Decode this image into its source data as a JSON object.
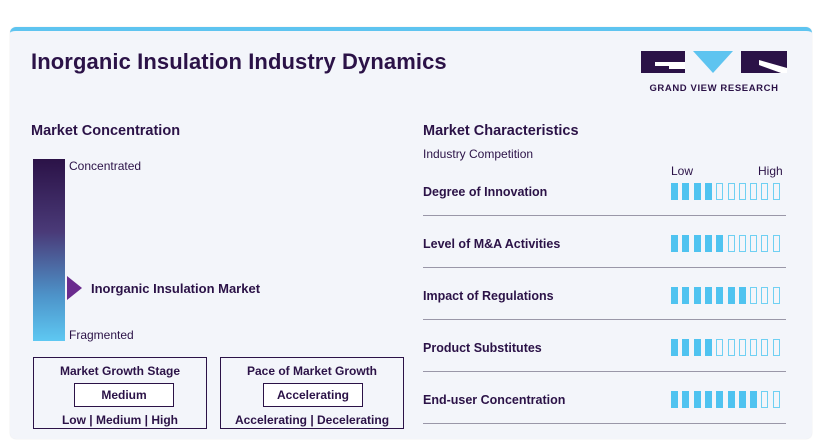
{
  "title": "Inorganic Insulation Industry Dynamics",
  "logo": {
    "text": "GRAND VIEW RESEARCH",
    "colors": {
      "dark": "#2b1247",
      "accent": "#5ec4f0"
    }
  },
  "market_concentration": {
    "heading": "Market Concentration",
    "top_label": "Concentrated",
    "bottom_label": "Fragmented",
    "marker_label": "Inorganic Insulation Market"
  },
  "growth_stage": {
    "heading": "Market Growth Stage",
    "selected": "Medium",
    "options": "Low | Medium | High"
  },
  "growth_pace": {
    "heading": "Pace of Market Growth",
    "selected": "Accelerating",
    "options": "Accelerating | Decelerating"
  },
  "market_characteristics": {
    "heading": "Market Characteristics",
    "subheading": "Industry Competition",
    "scale_low": "Low",
    "scale_high": "High",
    "segments_total": 10,
    "rows": [
      {
        "label": "Degree of Innovation",
        "level": 4
      },
      {
        "label": "Level of M&A Activities",
        "level": 5
      },
      {
        "label": "Impact of Regulations",
        "level": 7
      },
      {
        "label": "Product Substitutes",
        "level": 4
      },
      {
        "label": "End-user Concentration",
        "level": 8
      }
    ]
  }
}
